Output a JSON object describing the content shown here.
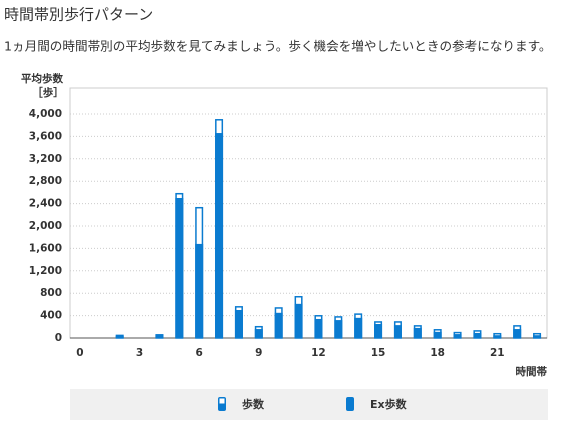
{
  "header": {
    "title": "時間帯別歩行パターン",
    "description": "1ヵ月間の時間帯別の平均歩数を見てみましょう。歩く機会を増やしたいときの参考になります。"
  },
  "chart_data": {
    "type": "bar",
    "y_label": [
      "平均歩数",
      "［歩］"
    ],
    "x_label": "時間帯",
    "categories": [
      "0",
      null,
      null,
      "3",
      null,
      null,
      "6",
      null,
      null,
      "9",
      null,
      null,
      "12",
      null,
      null,
      "15",
      null,
      null,
      "18",
      null,
      null,
      "21",
      null,
      null
    ],
    "series": [
      {
        "name": "歩数",
        "color": "#0a7bd0",
        "style": "outline",
        "values": [
          0,
          0,
          60,
          0,
          70,
          2590,
          2340,
          3910,
          570,
          215,
          550,
          750,
          410,
          390,
          440,
          300,
          300,
          230,
          160,
          110,
          140,
          90,
          230,
          90
        ]
      },
      {
        "name": "Ex歩数",
        "color": "#0a7bd0",
        "style": "filled",
        "values": [
          0,
          0,
          40,
          0,
          60,
          2500,
          1680,
          3660,
          500,
          160,
          450,
          610,
          340,
          320,
          360,
          250,
          230,
          180,
          110,
          70,
          90,
          50,
          160,
          50
        ]
      }
    ],
    "ylim": [
      0,
      4400
    ],
    "yticks": [
      0,
      400,
      800,
      {
        "value": 1200,
        "label": "1,200"
      },
      {
        "value": 1600,
        "label": "1,600"
      },
      {
        "value": 2000,
        "label": "2,000"
      },
      {
        "value": 2400,
        "label": "2,400"
      },
      {
        "value": 2800,
        "label": "2,800"
      },
      {
        "value": 3200,
        "label": "3,200"
      },
      {
        "value": 3600,
        "label": "3,600"
      },
      {
        "value": 4000,
        "label": "4,000"
      }
    ],
    "grid": true
  }
}
